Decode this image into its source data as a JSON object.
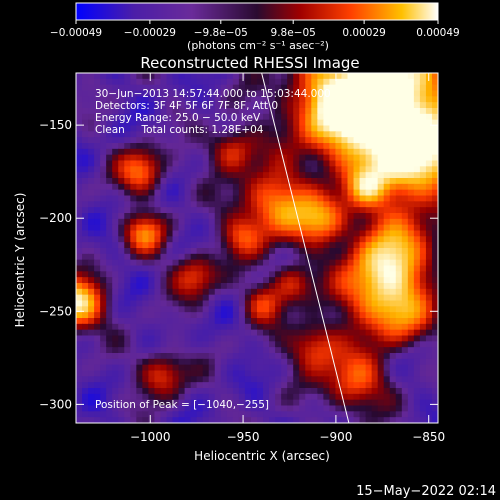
{
  "chart_data": {
    "type": "heatmap",
    "title": "Reconstructed RHESSI Image",
    "xlabel": "Heliocentric X (arcsec)",
    "ylabel": "Heliocentric Y (arcsec)",
    "xlim": [
      -1040,
      -845
    ],
    "ylim": [
      -310,
      -122
    ],
    "x_ticks": [
      -1000,
      -950,
      -900,
      -850
    ],
    "y_ticks": [
      -300,
      -250,
      -200,
      -150
    ],
    "x_tick_labels": [
      "−1000",
      "−950",
      "−900",
      "−850"
    ],
    "y_tick_labels": [
      "−300",
      "−250",
      "−200",
      "−150"
    ],
    "colorbar": {
      "tick_values": [
        -0.00049,
        -0.00029,
        -9.8e-05,
        9.8e-05,
        0.00029,
        0.00049
      ],
      "tick_labels": [
        "−0.00049",
        "−0.00029",
        "−9.8e−05",
        "9.8e−05",
        "0.00029",
        "0.00049"
      ],
      "unit_label": "(photons cm⁻² s⁻¹ asec⁻²)",
      "range": [
        -0.00049,
        0.00049
      ]
    },
    "annotations": [
      "30−Jun−2013 14:57:44.000 to 15:03:44.000",
      "Detectors: 3F 4F 5F 6F 7F 8F, Att 0",
      "Energy Range: 25.0 − 50.0 keV",
      "Clean     Total counts: 1.28E+04"
    ],
    "peak_label": "Position of Peak = [−1040,−255]",
    "limb_line": {
      "x": [
        -940,
        -893
      ],
      "y": [
        -122,
        -310
      ]
    },
    "grid": false
  },
  "footer": {
    "timestamp": "15−May−2022 02:14"
  },
  "colors": {
    "background": "#000000",
    "text": "#ffffff",
    "axis": "#ffffff",
    "limb": "#ffffff"
  }
}
